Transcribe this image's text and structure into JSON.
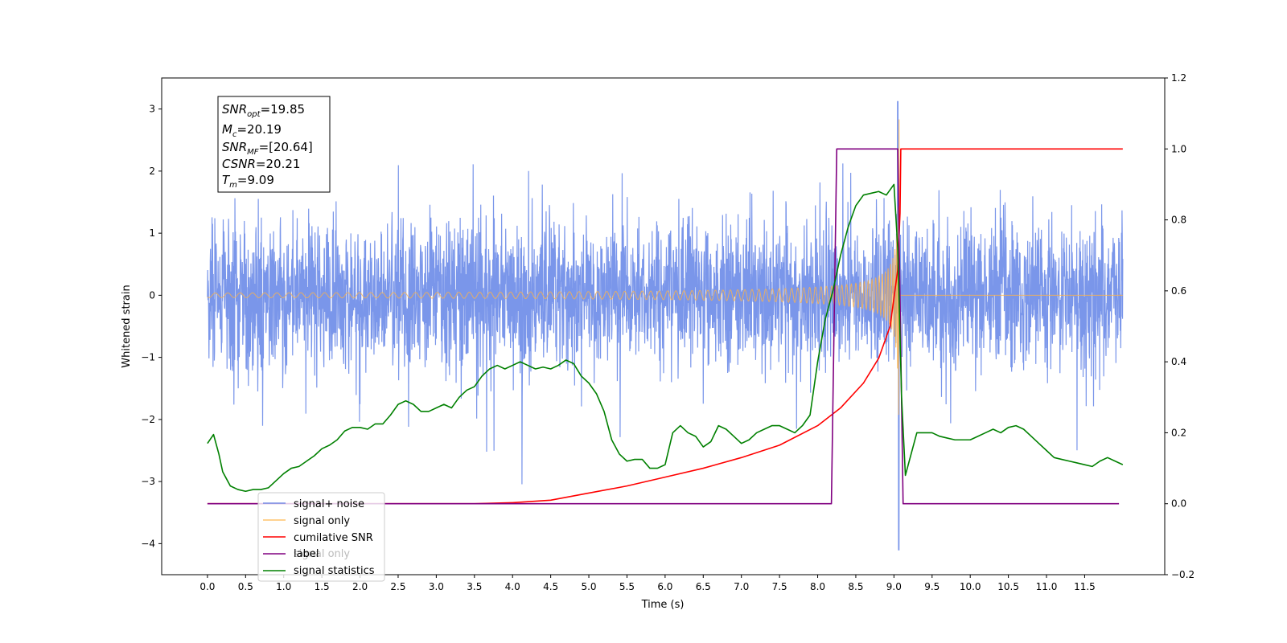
{
  "chart_data": {
    "type": "line",
    "title": "",
    "xlabel": "Time (s)",
    "ylabel": "Whitened strain",
    "y2label": "",
    "xlim": [
      -0.6,
      12.55
    ],
    "ylim": [
      -4.5,
      3.5
    ],
    "y2lim": [
      -0.2,
      1.2
    ],
    "x_ticks": [
      "0.0",
      "0.5",
      "1.0",
      "1.5",
      "2.0",
      "2.5",
      "3.0",
      "3.5",
      "4.0",
      "4.5",
      "5.0",
      "5.5",
      "6.0",
      "6.5",
      "7.0",
      "7.5",
      "8.0",
      "8.5",
      "9.0",
      "9.5",
      "10.0",
      "10.5",
      "11.0",
      "11.5"
    ],
    "y_ticks": [
      "3",
      "2",
      "1",
      "0",
      "−1",
      "−2",
      "−3",
      "−4"
    ],
    "y2_ticks": [
      "1.2",
      "1.0",
      "0.8",
      "0.6",
      "0.4",
      "0.2",
      "0.0",
      "−0.2"
    ],
    "grid": false,
    "legend_position": "lower-left",
    "annotation": {
      "snr_opt_value": "=19.85",
      "mc_value": "=20.19",
      "snr_mf_value": "=[20.64]",
      "csnr_value": "=20.21",
      "tm_value": "=9.09"
    },
    "series": [
      {
        "name": "signal+ noise",
        "axis": "left",
        "color": "#4169e1",
        "description": "whitened noisy strain, amplitude approx ±1.3 with spikes to about 2.6; large spike near t=9.05 reaching 3.1 and −4.1",
        "x_range": [
          0.0,
          12.0
        ]
      },
      {
        "name": "signal only",
        "axis": "left",
        "color": "#ffb347",
        "description": "chirp signal growing in amplitude up to ~2.8 at merger t≈9.07, then zero",
        "x_range": [
          0.0,
          12.0
        ]
      },
      {
        "name": "cumilative SNR",
        "axis": "right",
        "color": "#ff0000",
        "x": [
          0.0,
          3.0,
          3.5,
          4.0,
          4.5,
          5.0,
          5.5,
          6.0,
          6.5,
          7.0,
          7.5,
          8.0,
          8.3,
          8.6,
          8.8,
          8.95,
          9.05,
          9.08,
          9.09,
          12.0
        ],
        "y": [
          0.0,
          0.0,
          0.0,
          0.003,
          0.01,
          0.03,
          0.05,
          0.075,
          0.1,
          0.13,
          0.165,
          0.22,
          0.27,
          0.34,
          0.41,
          0.5,
          0.66,
          0.82,
          1.0,
          1.0
        ]
      },
      {
        "name": "label",
        "axis": "right",
        "color": "#800080",
        "x": [
          0.0,
          8.18,
          8.25,
          9.05,
          9.12,
          11.95
        ],
        "y": [
          0.0,
          0.0,
          1.0,
          1.0,
          0.0,
          0.0
        ]
      },
      {
        "name": "signal statistics",
        "axis": "right",
        "color": "#008000",
        "x": [
          0.0,
          0.08,
          0.15,
          0.2,
          0.25,
          0.3,
          0.4,
          0.5,
          0.6,
          0.7,
          0.8,
          1.0,
          1.1,
          1.2,
          1.3,
          1.4,
          1.5,
          1.6,
          1.7,
          1.8,
          1.9,
          2.0,
          2.1,
          2.2,
          2.3,
          2.4,
          2.5,
          2.6,
          2.7,
          2.8,
          2.9,
          3.0,
          3.1,
          3.2,
          3.3,
          3.4,
          3.5,
          3.6,
          3.7,
          3.8,
          3.9,
          4.0,
          4.1,
          4.2,
          4.3,
          4.4,
          4.5,
          4.6,
          4.7,
          4.8,
          4.9,
          5.0,
          5.1,
          5.2,
          5.3,
          5.4,
          5.5,
          5.6,
          5.7,
          5.8,
          5.9,
          6.0,
          6.1,
          6.2,
          6.3,
          6.4,
          6.5,
          6.6,
          6.7,
          6.8,
          6.9,
          7.0,
          7.1,
          7.2,
          7.3,
          7.4,
          7.5,
          7.6,
          7.7,
          7.8,
          7.9,
          8.0,
          8.1,
          8.2,
          8.3,
          8.4,
          8.5,
          8.6,
          8.7,
          8.8,
          8.9,
          9.0,
          9.05,
          9.1,
          9.15,
          9.2,
          9.3,
          9.4,
          9.5,
          9.6,
          9.7,
          9.8,
          9.9,
          10.0,
          10.1,
          10.2,
          10.3,
          10.4,
          10.5,
          10.6,
          10.7,
          10.8,
          10.9,
          11.0,
          11.1,
          11.2,
          11.3,
          11.4,
          11.5,
          11.6,
          11.7,
          11.8,
          11.9,
          12.0
        ],
        "y": [
          0.17,
          0.195,
          0.14,
          0.09,
          0.07,
          0.05,
          0.04,
          0.035,
          0.04,
          0.04,
          0.045,
          0.085,
          0.1,
          0.105,
          0.12,
          0.135,
          0.155,
          0.165,
          0.18,
          0.205,
          0.215,
          0.215,
          0.21,
          0.225,
          0.225,
          0.25,
          0.28,
          0.29,
          0.28,
          0.26,
          0.26,
          0.27,
          0.28,
          0.27,
          0.3,
          0.32,
          0.33,
          0.36,
          0.38,
          0.39,
          0.38,
          0.39,
          0.4,
          0.39,
          0.38,
          0.385,
          0.38,
          0.39,
          0.405,
          0.395,
          0.36,
          0.34,
          0.31,
          0.26,
          0.18,
          0.14,
          0.12,
          0.125,
          0.125,
          0.1,
          0.1,
          0.11,
          0.2,
          0.22,
          0.2,
          0.19,
          0.16,
          0.175,
          0.22,
          0.21,
          0.19,
          0.17,
          0.18,
          0.2,
          0.21,
          0.22,
          0.22,
          0.21,
          0.2,
          0.22,
          0.25,
          0.4,
          0.52,
          0.6,
          0.7,
          0.78,
          0.84,
          0.87,
          0.875,
          0.88,
          0.87,
          0.9,
          0.72,
          0.3,
          0.08,
          0.12,
          0.2,
          0.2,
          0.2,
          0.19,
          0.185,
          0.18,
          0.18,
          0.18,
          0.19,
          0.2,
          0.21,
          0.2,
          0.215,
          0.22,
          0.21,
          0.19,
          0.17,
          0.15,
          0.13,
          0.125,
          0.12,
          0.115,
          0.11,
          0.105,
          0.12,
          0.13,
          0.12,
          0.11
        ]
      }
    ]
  },
  "legend": {
    "items": [
      "signal+ noise",
      "signal only",
      "cumilative SNR",
      "label",
      "signal statistics"
    ],
    "hidden_text": "signal only"
  }
}
